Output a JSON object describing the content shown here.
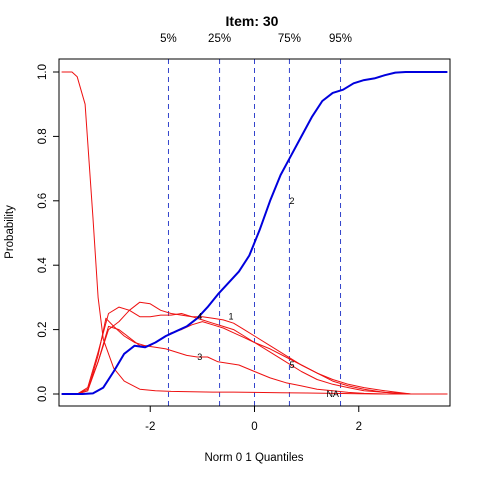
{
  "chart_data": {
    "type": "line",
    "title": "Item:  30",
    "xlabel": "Norm 0 1 Quantiles",
    "ylabel": "Probability",
    "xlim": [
      -3.75,
      3.75
    ],
    "ylim": [
      0,
      1
    ],
    "x_ticks": [
      -2,
      0,
      2
    ],
    "x_tick_labels": [
      "-2",
      "0",
      "2"
    ],
    "y_ticks": [
      0,
      0.2,
      0.4,
      0.6,
      0.8,
      1
    ],
    "y_tick_labels": [
      "0.0",
      "0.2",
      "0.4",
      "0.6",
      "0.8",
      "1.0"
    ],
    "grid": false,
    "quantiles": [
      {
        "label": "5%",
        "x": -1.65
      },
      {
        "label": "25%",
        "x": -0.67
      },
      {
        "label": "",
        "x": 0
      },
      {
        "label": "75%",
        "x": 0.67
      },
      {
        "label": "95%",
        "x": 1.65
      }
    ],
    "colors": {
      "correct": "#0000dd",
      "other": "#ee1111",
      "quantile": "#3344cc"
    },
    "curve_labels": [
      {
        "text": "2",
        "x": 0.72,
        "y": 0.6
      },
      {
        "text": "4",
        "x": -1.05,
        "y": 0.24
      },
      {
        "text": "1",
        "x": -0.45,
        "y": 0.24
      },
      {
        "text": "3",
        "x": -1.05,
        "y": 0.115
      },
      {
        "text": "5",
        "x": 0.72,
        "y": 0.09
      },
      {
        "text": "NA",
        "x": 1.5,
        "y": 0.0
      }
    ],
    "series": [
      {
        "role": "correct",
        "x": [
          -3.7,
          -3.5,
          -3.3,
          -3.1,
          -2.9,
          -2.7,
          -2.5,
          -2.3,
          -2.1,
          -1.9,
          -1.7,
          -1.5,
          -1.3,
          -1.1,
          -0.9,
          -0.7,
          -0.5,
          -0.3,
          -0.1,
          0.1,
          0.3,
          0.5,
          0.7,
          0.9,
          1.1,
          1.3,
          1.5,
          1.7,
          1.9,
          2.1,
          2.3,
          2.5,
          2.7,
          2.9,
          3.2,
          3.5,
          3.7
        ],
        "values": [
          0.0,
          0.0,
          0.0,
          0.002,
          0.02,
          0.07,
          0.125,
          0.15,
          0.145,
          0.16,
          0.18,
          0.195,
          0.21,
          0.235,
          0.27,
          0.31,
          0.345,
          0.38,
          0.43,
          0.51,
          0.6,
          0.68,
          0.74,
          0.8,
          0.86,
          0.91,
          0.935,
          0.945,
          0.965,
          0.975,
          0.98,
          0.99,
          0.998,
          1.0,
          1.0,
          1.0,
          1.0
        ]
      },
      {
        "role": "other",
        "x": [
          -3.7,
          -3.5,
          -3.4,
          -3.25,
          -3.1,
          -3.0,
          -2.9,
          -2.7,
          -2.5,
          -2.2,
          -1.9,
          -1.6,
          -1.2,
          -0.8,
          -0.4,
          0.0,
          0.5,
          1.0,
          1.5,
          2.0,
          2.5,
          3.0,
          3.7
        ],
        "values": [
          1.0,
          1.0,
          0.985,
          0.9,
          0.55,
          0.3,
          0.17,
          0.08,
          0.04,
          0.015,
          0.01,
          0.008,
          0.007,
          0.006,
          0.006,
          0.005,
          0.004,
          0.003,
          0.002,
          0.001,
          0.0,
          0.0,
          0.0
        ]
      },
      {
        "role": "other",
        "x": [
          -3.7,
          -3.4,
          -3.2,
          -3.0,
          -2.8,
          -2.6,
          -2.4,
          -2.2,
          -2.0,
          -1.8,
          -1.6,
          -1.4,
          -1.2,
          -1.0,
          -0.8,
          -0.6,
          -0.4,
          -0.2,
          0.0,
          0.3,
          0.6,
          0.9,
          1.2,
          1.5,
          1.8,
          2.1,
          2.5,
          3.0,
          3.7
        ],
        "values": [
          0.0,
          0.0,
          0.02,
          0.13,
          0.25,
          0.27,
          0.26,
          0.24,
          0.24,
          0.245,
          0.245,
          0.25,
          0.24,
          0.23,
          0.22,
          0.21,
          0.2,
          0.18,
          0.16,
          0.13,
          0.1,
          0.07,
          0.045,
          0.03,
          0.02,
          0.01,
          0.005,
          0.0,
          0.0
        ]
      },
      {
        "role": "other",
        "x": [
          -3.7,
          -3.4,
          -3.2,
          -3.0,
          -2.8,
          -2.6,
          -2.4,
          -2.2,
          -2.0,
          -1.8,
          -1.6,
          -1.4,
          -1.2,
          -1.0,
          -0.8,
          -0.6,
          -0.4,
          -0.2,
          0.0,
          0.3,
          0.6,
          0.9,
          1.2,
          1.5,
          1.8,
          2.1,
          2.5,
          3.0,
          3.7
        ],
        "values": [
          0.0,
          0.0,
          0.015,
          0.1,
          0.2,
          0.225,
          0.26,
          0.285,
          0.28,
          0.26,
          0.25,
          0.245,
          0.24,
          0.24,
          0.235,
          0.23,
          0.22,
          0.2,
          0.18,
          0.15,
          0.12,
          0.09,
          0.065,
          0.04,
          0.025,
          0.015,
          0.005,
          0.0,
          0.0
        ]
      },
      {
        "role": "other",
        "x": [
          -3.7,
          -3.4,
          -3.2,
          -3.0,
          -2.85,
          -2.7,
          -2.5,
          -2.3,
          -2.1,
          -1.9,
          -1.7,
          -1.5,
          -1.3,
          -1.1,
          -0.9,
          -0.7,
          -0.5,
          -0.3,
          0.0,
          0.3,
          0.6,
          0.9,
          1.2,
          1.5,
          1.8,
          2.1,
          2.5,
          3.0,
          3.7
        ],
        "values": [
          0.0,
          0.0,
          0.01,
          0.12,
          0.235,
          0.21,
          0.18,
          0.16,
          0.15,
          0.145,
          0.14,
          0.13,
          0.12,
          0.115,
          0.115,
          0.1,
          0.095,
          0.09,
          0.07,
          0.05,
          0.035,
          0.025,
          0.015,
          0.01,
          0.005,
          0.002,
          0.0,
          0.0,
          0.0
        ]
      },
      {
        "role": "other",
        "x": [
          -3.7,
          -3.4,
          -3.2,
          -3.0,
          -2.8,
          -2.6,
          -2.4,
          -2.2,
          -2.0,
          -1.8,
          -1.6,
          -1.4,
          -1.2,
          -1.0,
          -0.8,
          -0.6,
          -0.4,
          -0.2,
          0.0,
          0.3,
          0.6,
          0.9,
          1.2,
          1.5,
          1.8,
          2.1,
          2.5,
          3.0,
          3.7
        ],
        "values": [
          0.0,
          0.0,
          0.01,
          0.1,
          0.21,
          0.2,
          0.175,
          0.15,
          0.15,
          0.17,
          0.19,
          0.2,
          0.215,
          0.225,
          0.215,
          0.205,
          0.19,
          0.175,
          0.16,
          0.14,
          0.115,
          0.09,
          0.065,
          0.045,
          0.03,
          0.02,
          0.01,
          0.0,
          0.0
        ]
      }
    ]
  }
}
